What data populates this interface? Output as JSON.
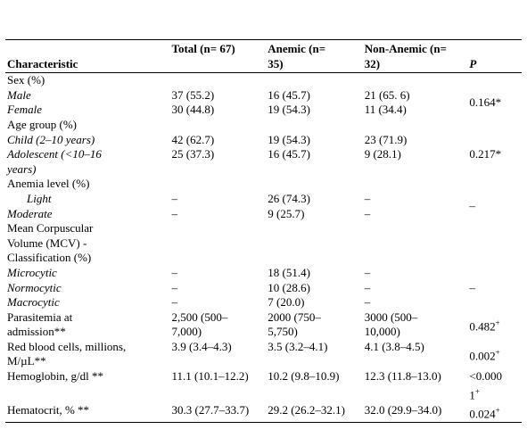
{
  "table": {
    "header": {
      "characteristic": "Characteristic",
      "total": "Total (n= 67)",
      "anemic": "Anemic (n= 35)",
      "non_anemic": "Non-Anemic (n= 32)",
      "p": "P"
    },
    "rows": [
      [
        "Sex (%)"
      ],
      [
        "Male",
        "37 (55.2)",
        "16 (45.7)",
        "21 (65. 6)"
      ],
      [
        "Female",
        "30 (44.8)",
        "19 (54.3)",
        "11 (34.4)"
      ],
      [
        "Age group (%)"
      ],
      [
        "Child (2–10 years)",
        "42 (62.7)",
        "19 (54.3)",
        "23 (71.9)"
      ],
      [
        "Adolescent (<10–16 years)",
        "25 (37.3)",
        "16 (45.7)",
        "9 (28.1)"
      ],
      [
        "Anemia level (%)"
      ],
      [
        "Light",
        "–",
        "26 (74.3)",
        "–"
      ],
      [
        "Moderate",
        "–",
        "9 (25.7)",
        "–"
      ],
      [
        "Mean Corpuscular Volume (MCV) - Classification (%)"
      ],
      [
        "Microcytic",
        "–",
        "18 (51.4)",
        "–"
      ],
      [
        "Normocytic",
        "–",
        "10 (28.6)",
        "–"
      ],
      [
        "Macrocytic",
        "–",
        "7 (20.0)",
        "–"
      ],
      [
        "Parasitemia at admission**",
        "2,500 (500–7,000)",
        "2000 (750–5,750)",
        "3000 (500–10,000)"
      ],
      [
        "Red blood cells, millions, M/µL**",
        "3.9 (3.4–4.3)",
        "3.5 (3.2–4.1)",
        "4.1 (3.8–4.5)"
      ],
      [
        "Hemoglobin, g/dl **",
        "11.1 (10.1–12.2)",
        "10.2 (9.8–10.9)",
        "12.3 (11.8–13.0)"
      ],
      [
        "Hematocrit, % **",
        "30.3 (27.7–33.7)",
        "29.2 (26.2–32.1)",
        "32.0 (29.9–34.0)"
      ]
    ],
    "p_values": [
      "0.164*",
      "0.217*",
      "–",
      "–",
      {
        "text": "0.482",
        "sup": "+"
      },
      {
        "text": "0.002",
        "sup": "+"
      },
      {
        "text": "<0.0001",
        "sup": "+"
      },
      {
        "text": "0.024",
        "sup": "+"
      }
    ]
  }
}
